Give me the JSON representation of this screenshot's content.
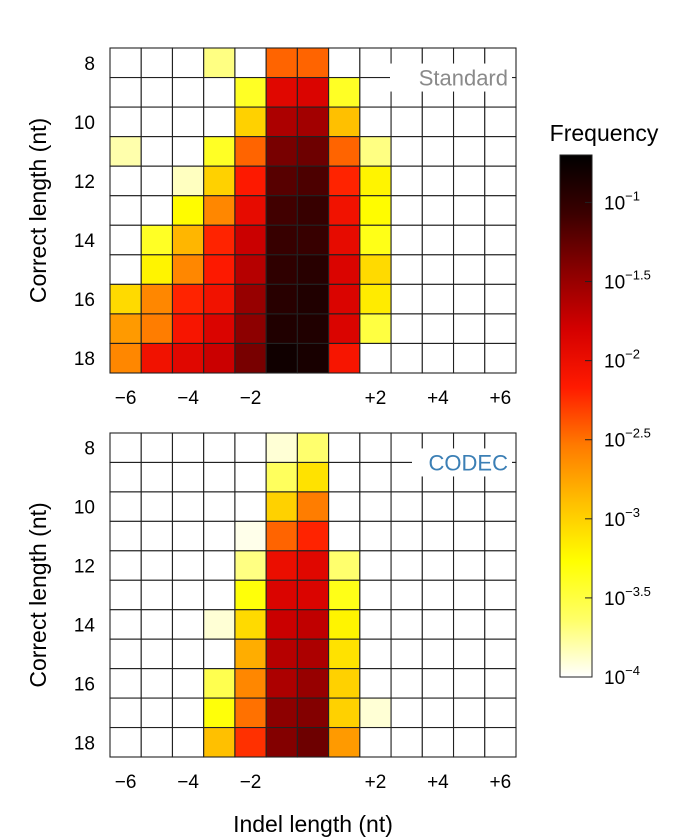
{
  "colors": {
    "grid": "#222222",
    "standard_label": "#8a8a8a",
    "codec_label": "#3b7fb5",
    "scale_stops": [
      "#ffffff",
      "#ffff66",
      "#ffff00",
      "#ffc000",
      "#ff7a00",
      "#ff1a00",
      "#d40000",
      "#8a0000",
      "#3a0000",
      "#000000"
    ]
  },
  "chart_data": [
    {
      "type": "heatmap",
      "panel_label": "Standard",
      "x": [
        -6,
        -5,
        -4,
        -3,
        -2,
        -1,
        0,
        1,
        2,
        3,
        4,
        5,
        6
      ],
      "y": [
        8,
        9,
        10,
        11,
        12,
        13,
        14,
        15,
        16,
        17,
        18
      ],
      "xticks": [
        "−6",
        "−4",
        "−2",
        "+2",
        "+4",
        "+6"
      ],
      "yticks": [
        "8",
        "10",
        "12",
        "14",
        "16",
        "18"
      ],
      "ylabel": "Correct length (nt)",
      "values_log10": [
        [
          null,
          null,
          null,
          -3.7,
          null,
          -2.45,
          -2.45,
          null,
          null,
          null,
          null,
          null,
          null
        ],
        [
          null,
          null,
          null,
          null,
          -3.4,
          -1.9,
          -1.85,
          -3.4,
          null,
          null,
          null,
          null,
          null
        ],
        [
          null,
          null,
          null,
          null,
          -3.0,
          -1.6,
          -1.55,
          -2.9,
          null,
          null,
          null,
          null,
          null
        ],
        [
          -3.8,
          null,
          null,
          -3.4,
          -2.45,
          -1.35,
          -1.3,
          -2.45,
          -3.7,
          null,
          null,
          null,
          null
        ],
        [
          null,
          null,
          -3.85,
          -3.0,
          -2.15,
          -1.2,
          -1.15,
          -2.2,
          -3.2,
          null,
          null,
          null,
          null
        ],
        [
          null,
          null,
          -3.25,
          -2.6,
          -1.95,
          -1.1,
          -1.05,
          -2.05,
          -3.25,
          null,
          null,
          null,
          null
        ],
        [
          null,
          -3.4,
          -2.85,
          -2.2,
          -1.75,
          -1.05,
          -1.05,
          -1.95,
          -3.35,
          null,
          null,
          null,
          null
        ],
        [
          null,
          -3.2,
          -2.6,
          -2.15,
          -1.65,
          -1.0,
          -0.95,
          -1.85,
          -3.05,
          null,
          null,
          null,
          null
        ],
        [
          -3.05,
          -2.6,
          -2.2,
          -2.05,
          -1.5,
          -0.95,
          -0.9,
          -1.85,
          -3.15,
          null,
          null,
          null,
          null
        ],
        [
          -2.7,
          -2.55,
          -2.1,
          -1.85,
          -1.45,
          -0.9,
          -0.9,
          -1.85,
          -3.5,
          null,
          null,
          null,
          null
        ],
        [
          -2.6,
          -2.05,
          -1.9,
          -1.75,
          -1.35,
          -0.8,
          -0.85,
          -2.1,
          null,
          null,
          null,
          null,
          null
        ]
      ]
    },
    {
      "type": "heatmap",
      "panel_label": "CODEC",
      "x": [
        -6,
        -5,
        -4,
        -3,
        -2,
        -1,
        0,
        1,
        2,
        3,
        4,
        5,
        6
      ],
      "y": [
        8,
        9,
        10,
        11,
        12,
        13,
        14,
        15,
        16,
        17,
        18
      ],
      "xticks": [
        "−6",
        "−4",
        "−2",
        "+2",
        "+4",
        "+6"
      ],
      "yticks": [
        "8",
        "10",
        "12",
        "14",
        "16",
        "18"
      ],
      "xlabel": "Indel length (nt)",
      "ylabel": "Correct length (nt)",
      "values_log10": [
        [
          null,
          null,
          null,
          null,
          null,
          -3.9,
          -3.65,
          null,
          null,
          null,
          null,
          null,
          null
        ],
        [
          null,
          null,
          null,
          null,
          null,
          -3.6,
          -3.1,
          null,
          null,
          null,
          null,
          null,
          null
        ],
        [
          null,
          null,
          null,
          null,
          null,
          -3.0,
          -2.55,
          null,
          null,
          null,
          null,
          null,
          null
        ],
        [
          null,
          null,
          null,
          null,
          -3.95,
          -2.45,
          -2.2,
          null,
          null,
          null,
          null,
          null,
          null
        ],
        [
          null,
          null,
          null,
          null,
          -3.7,
          -2.0,
          -1.9,
          -3.65,
          null,
          null,
          null,
          null,
          null
        ],
        [
          null,
          null,
          null,
          null,
          -3.3,
          -1.85,
          -1.85,
          -3.35,
          null,
          null,
          null,
          null,
          null
        ],
        [
          null,
          null,
          null,
          -3.9,
          -3.05,
          -1.75,
          -1.7,
          -3.2,
          null,
          null,
          null,
          null,
          null
        ],
        [
          null,
          null,
          null,
          null,
          -2.8,
          -1.65,
          -1.6,
          -3.1,
          null,
          null,
          null,
          null,
          null
        ],
        [
          null,
          null,
          null,
          -3.55,
          -2.6,
          -1.6,
          -1.5,
          -3.0,
          null,
          null,
          null,
          null,
          null
        ],
        [
          null,
          null,
          null,
          -3.3,
          -2.5,
          -1.45,
          -1.4,
          -3.0,
          -3.9,
          null,
          null,
          null,
          null
        ],
        [
          null,
          null,
          null,
          -2.9,
          -2.25,
          -1.4,
          -1.3,
          -2.7,
          null,
          null,
          null,
          null,
          null
        ]
      ]
    }
  ],
  "colorbar": {
    "title": "Frequency",
    "scale": "log",
    "min_log10": -4,
    "max_log10": -0.7,
    "ticks": [
      {
        "log": -1,
        "mantissa": "10",
        "exponent": "−1"
      },
      {
        "log": -1.5,
        "mantissa": "10",
        "exponent": "−1.5"
      },
      {
        "log": -2,
        "mantissa": "10",
        "exponent": "−2"
      },
      {
        "log": -2.5,
        "mantissa": "10",
        "exponent": "−2.5"
      },
      {
        "log": -3,
        "mantissa": "10",
        "exponent": "−3"
      },
      {
        "log": -3.5,
        "mantissa": "10",
        "exponent": "−3.5"
      },
      {
        "log": -4,
        "mantissa": "10",
        "exponent": "−4"
      }
    ]
  }
}
